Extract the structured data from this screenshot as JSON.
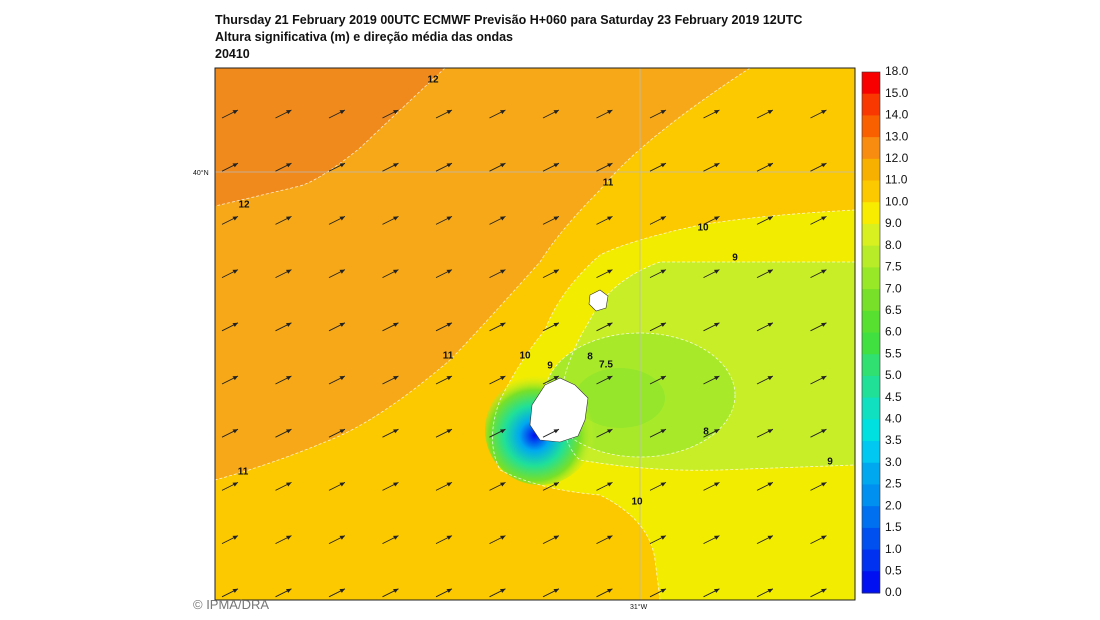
{
  "header": {
    "lines": [
      "Thursday 21 February 2019 00UTC  ECMWF Previsão H+060 para Saturday 23 February 2019 12UTC",
      "Altura significativa (m) e direção média das ondas",
      "20410"
    ]
  },
  "colorbar": {
    "labels": [
      "18.0",
      "15.0",
      "14.0",
      "13.0",
      "12.0",
      "11.0",
      "10.0",
      "9.0",
      "8.0",
      "7.5",
      "7.0",
      "6.5",
      "6.0",
      "5.5",
      "5.0",
      "4.5",
      "4.0",
      "3.5",
      "3.0",
      "2.5",
      "2.0",
      "1.5",
      "1.0",
      "0.5",
      "0.0"
    ],
    "colors": [
      "#f80000",
      "#f83800",
      "#f86000",
      "#f88c10",
      "#f8b000",
      "#fcc800",
      "#f8ec00",
      "#d8f020",
      "#b8ec28",
      "#98e828",
      "#78e028",
      "#58e030",
      "#40e040",
      "#30e070",
      "#20e098",
      "#10e0c0",
      "#00e0e0",
      "#00c8f0",
      "#00a8f0",
      "#0090f0",
      "#0070f0",
      "#0050f0",
      "#0030f0",
      "#0010f0"
    ]
  },
  "contour_labels": [
    "12",
    "12",
    "11",
    "11",
    "11",
    "10",
    "10",
    "10",
    "9",
    "9",
    "9",
    "8",
    "8",
    "7.5"
  ],
  "axes": {
    "lat": "40°N",
    "lon": "31°W"
  },
  "credit": "© IPMA/DRA"
}
